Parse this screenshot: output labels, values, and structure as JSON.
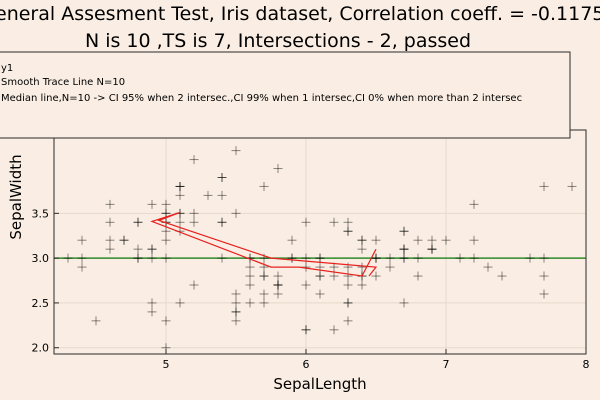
{
  "colors": {
    "background": "#faeee4",
    "points": "#000000",
    "smooth": "#e8211e",
    "median": "#2f8a2a",
    "grid": "#e6d8cc",
    "frame": "#2b2b2b"
  },
  "chart_data": {
    "type": "scatter",
    "title": "eneral Assesment Test, Iris dataset, Correlation coeff. = -0.1175697841",
    "subtitle": "N is 10 ,TS is 7, Intersections - 2, passed",
    "xlabel": "SepalLength",
    "ylabel": "SepalWidth",
    "xlim": [
      4.2,
      8.0
    ],
    "ylim": [
      1.93,
      4.43
    ],
    "x_ticks": [
      {
        "v": 5,
        "label": "5"
      },
      {
        "v": 6,
        "label": "6"
      },
      {
        "v": 7,
        "label": "7"
      },
      {
        "v": 8,
        "label": "8"
      }
    ],
    "y_ticks": [
      {
        "v": 2.0,
        "label": "2.0"
      },
      {
        "v": 2.5,
        "label": "2.5"
      },
      {
        "v": 3.0,
        "label": "3.0"
      },
      {
        "v": 3.5,
        "label": "3.5"
      }
    ],
    "grid": true,
    "legend_position": "top",
    "legend": [
      "y1",
      "Smooth Trace Line N=10",
      "Median line,N=10 -> CI 95% when 2 intersec.,CI 99% when 1 intersec,CI 0% when more than 2 intersec"
    ],
    "series": [
      {
        "name": "y1",
        "type": "scatter",
        "x": [
          5.1,
          4.9,
          4.7,
          4.6,
          5.0,
          5.4,
          4.6,
          5.0,
          4.4,
          4.9,
          5.4,
          4.8,
          4.8,
          4.3,
          5.8,
          5.7,
          5.4,
          5.1,
          5.7,
          5.1,
          5.4,
          5.1,
          4.6,
          5.1,
          4.8,
          5.0,
          5.0,
          5.2,
          5.2,
          4.7,
          4.8,
          5.4,
          5.2,
          5.5,
          4.9,
          5.0,
          5.5,
          4.9,
          4.4,
          5.1,
          5.0,
          4.5,
          4.4,
          5.0,
          5.1,
          4.8,
          5.1,
          4.6,
          5.3,
          5.0,
          7.0,
          6.4,
          6.9,
          5.5,
          6.5,
          5.7,
          6.3,
          4.9,
          6.6,
          5.2,
          5.0,
          5.9,
          6.0,
          6.1,
          5.6,
          6.7,
          5.6,
          5.8,
          6.2,
          5.6,
          5.9,
          6.1,
          6.3,
          6.1,
          6.4,
          6.6,
          6.8,
          6.7,
          6.0,
          5.7,
          5.5,
          5.5,
          5.8,
          6.0,
          5.4,
          6.0,
          6.7,
          6.3,
          5.6,
          5.5,
          5.5,
          6.1,
          5.8,
          5.0,
          5.6,
          5.7,
          5.7,
          6.2,
          5.1,
          5.7,
          6.3,
          5.8,
          7.1,
          6.3,
          6.5,
          7.6,
          4.9,
          7.3,
          6.7,
          7.2,
          6.5,
          6.4,
          6.8,
          5.7,
          5.8,
          6.4,
          6.5,
          7.7,
          7.7,
          6.0,
          6.9,
          5.6,
          7.7,
          6.3,
          6.7,
          7.2,
          6.2,
          6.1,
          6.4,
          7.2,
          7.4,
          7.9,
          6.4,
          6.3,
          6.1,
          7.7,
          6.3,
          6.4,
          6.0,
          6.9,
          6.7,
          6.9,
          5.8,
          6.8,
          6.7,
          6.7,
          6.3,
          6.5,
          6.2,
          5.9
        ],
        "y": [
          3.5,
          3.0,
          3.2,
          3.1,
          3.6,
          3.9,
          3.4,
          3.4,
          2.9,
          3.1,
          3.7,
          3.4,
          3.0,
          3.0,
          4.0,
          4.4,
          3.9,
          3.5,
          3.8,
          3.8,
          3.4,
          3.7,
          3.6,
          3.3,
          3.4,
          3.0,
          3.4,
          3.5,
          3.4,
          3.2,
          3.1,
          3.4,
          4.1,
          4.2,
          3.1,
          3.2,
          3.5,
          3.6,
          3.0,
          3.4,
          3.5,
          2.3,
          3.2,
          3.5,
          3.8,
          3.0,
          3.8,
          3.2,
          3.7,
          3.3,
          3.2,
          3.2,
          3.1,
          2.3,
          2.8,
          2.8,
          3.3,
          2.4,
          2.9,
          2.7,
          2.0,
          3.0,
          2.2,
          2.9,
          2.9,
          3.1,
          3.0,
          2.7,
          2.2,
          2.5,
          3.2,
          2.8,
          2.5,
          2.8,
          2.9,
          3.0,
          2.8,
          3.0,
          2.9,
          2.6,
          2.4,
          2.4,
          2.7,
          2.7,
          3.0,
          3.4,
          3.1,
          2.3,
          3.0,
          2.5,
          2.6,
          3.0,
          2.6,
          2.3,
          2.7,
          3.0,
          2.9,
          2.9,
          2.5,
          2.8,
          3.3,
          2.7,
          3.0,
          2.9,
          3.0,
          3.0,
          2.5,
          2.9,
          2.5,
          3.6,
          3.2,
          2.7,
          3.0,
          2.5,
          2.8,
          3.2,
          3.0,
          3.8,
          2.6,
          2.2,
          3.2,
          2.8,
          2.8,
          2.7,
          3.3,
          3.2,
          2.8,
          3.0,
          2.8,
          3.0,
          2.8,
          3.8,
          2.8,
          2.8,
          2.6,
          3.0,
          3.4,
          3.1,
          3.0,
          3.1,
          3.1,
          3.1,
          2.7,
          3.2,
          3.3,
          3.0,
          2.5,
          3.0,
          3.4,
          3.0
        ]
      },
      {
        "name": "Smooth Trace Line N=10",
        "type": "line",
        "x": [
          6.5,
          6.4,
          5.95,
          5.75,
          4.9,
          5.1,
          4.95,
          5.75,
          6.5,
          6.45
        ],
        "y": [
          3.1,
          2.8,
          2.9,
          2.9,
          3.41,
          3.51,
          3.42,
          3.0,
          2.9,
          2.8
        ]
      },
      {
        "name": "Median line,N=10 -> CI 95% when 2 intersec.,CI 99% when 1 intersec,CI 0% when more than 2 intersec",
        "type": "line",
        "x": [
          4.2,
          8.0
        ],
        "y": [
          3.0,
          3.0
        ]
      }
    ]
  }
}
